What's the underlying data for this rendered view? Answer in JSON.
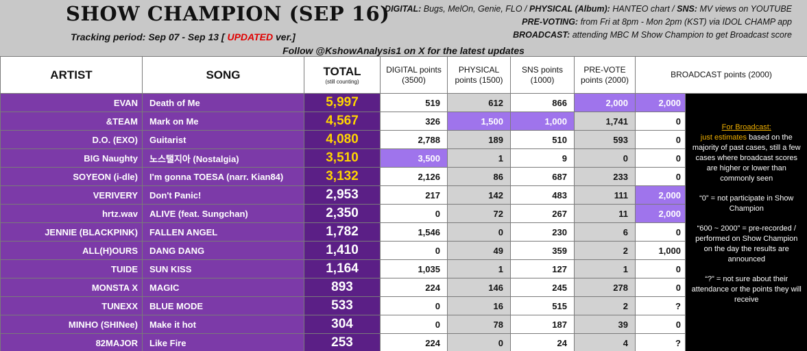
{
  "header": {
    "title": "SHOW CHAMPION (SEP 16)",
    "tracking_prefix": "Tracking period: Sep 07 - Sep 13 [",
    "tracking_updated": "UPDATED",
    "tracking_suffix": "ver.]",
    "follow": "Follow @KshowAnalysis1 on X for the latest updates",
    "notes": [
      {
        "label": "DIGITAL:",
        "text": "Bugs, MelOn, Genie, FLO /",
        "label2": "PHYSICAL (Album):",
        "text2": "HANTEO chart /",
        "label3": "SNS:",
        "text3": "MV views on YOUTUBE"
      },
      {
        "label": "PRE-VOTING:",
        "text": "from Fri at 8pm - Mon 2pm (KST) via IDOL CHAMP app"
      },
      {
        "label": "BROADCAST:",
        "text": "attending MBC M Show Champion to get Broadcast score"
      }
    ]
  },
  "columns": {
    "artist": "ARTIST",
    "song": "SONG",
    "total": "TOTAL",
    "total_sub": "(still counting)",
    "digital": "DIGITAL points (3500)",
    "physical": "PHYSICAL points (1500)",
    "sns": "SNS points (1000)",
    "prevote": "PRE-VOTE points (2000)",
    "broadcast": "BROADCAST points (2000)"
  },
  "rows": [
    {
      "artist": "EVAN",
      "song": "Death of Me",
      "total": "5,997",
      "digital": "519",
      "physical": "612",
      "sns": "866",
      "prevote": "2,000",
      "broadcast": "2,000"
    },
    {
      "artist": "&TEAM",
      "song": "Mark on Me",
      "total": "4,567",
      "digital": "326",
      "physical": "1,500",
      "sns": "1,000",
      "prevote": "1,741",
      "broadcast": "0"
    },
    {
      "artist": "D.O. (EXO)",
      "song": "Guitarist",
      "total": "4,080",
      "digital": "2,788",
      "physical": "189",
      "sns": "510",
      "prevote": "593",
      "broadcast": "0"
    },
    {
      "artist": "BIG Naughty",
      "song": "노스탤지아 (Nostalgia)",
      "total": "3,510",
      "digital": "3,500",
      "physical": "1",
      "sns": "9",
      "prevote": "0",
      "broadcast": "0"
    },
    {
      "artist": "SOYEON (i-dle)",
      "song": "I'm gonna TOESA (narr. Kian84)",
      "total": "3,132",
      "digital": "2,126",
      "physical": "86",
      "sns": "687",
      "prevote": "233",
      "broadcast": "0"
    },
    {
      "artist": "VERIVERY",
      "song": "Don't Panic!",
      "total": "2,953",
      "digital": "217",
      "physical": "142",
      "sns": "483",
      "prevote": "111",
      "broadcast": "2,000"
    },
    {
      "artist": "hrtz.wav",
      "song": "ALIVE (feat. Sungchan)",
      "total": "2,350",
      "digital": "0",
      "physical": "72",
      "sns": "267",
      "prevote": "11",
      "broadcast": "2,000"
    },
    {
      "artist": "JENNIE (BLACKPINK)",
      "song": "FALLEN ANGEL",
      "total": "1,782",
      "digital": "1,546",
      "physical": "0",
      "sns": "230",
      "prevote": "6",
      "broadcast": "0"
    },
    {
      "artist": "ALL(H)OURS",
      "song": "DANG DANG",
      "total": "1,410",
      "digital": "0",
      "physical": "49",
      "sns": "359",
      "prevote": "2",
      "broadcast": "1,000"
    },
    {
      "artist": "TUIDE",
      "song": "SUN KISS",
      "total": "1,164",
      "digital": "1,035",
      "physical": "1",
      "sns": "127",
      "prevote": "1",
      "broadcast": "0"
    },
    {
      "artist": "MONSTA X",
      "song": "MAGIC",
      "total": "893",
      "digital": "224",
      "physical": "146",
      "sns": "245",
      "prevote": "278",
      "broadcast": "0"
    },
    {
      "artist": "TUNEXX",
      "song": "BLUE MODE",
      "total": "533",
      "digital": "0",
      "physical": "16",
      "sns": "515",
      "prevote": "2",
      "broadcast": "?"
    },
    {
      "artist": "MINHO (SHINee)",
      "song": "Make it hot",
      "total": "304",
      "digital": "0",
      "physical": "78",
      "sns": "187",
      "prevote": "39",
      "broadcast": "0"
    },
    {
      "artist": "82MAJOR",
      "song": "Like Fire",
      "total": "253",
      "digital": "224",
      "physical": "0",
      "sns": "24",
      "prevote": "4",
      "broadcast": "?"
    }
  ],
  "sidenote": {
    "heading": "For Broadcast:",
    "estimate_lead": "just estimates",
    "estimate_rest": "based on the majority of past cases, still a few cases where broadcast scores are higher or lower than commonly seen",
    "zero": "“0” = not participate in Show Champion",
    "range": "“600 ~ 2000” = pre-recorded / performed on Show Champion on the day the results are announced",
    "unknown": "“?” = not sure about their attendance or the points they will receive"
  },
  "colors": {
    "artist_bg": "#7c3aa8",
    "total_bg": "#5b1f86",
    "gold": "#ffd500",
    "highlight": "#9f74ec",
    "updated_red": "#e00000"
  }
}
